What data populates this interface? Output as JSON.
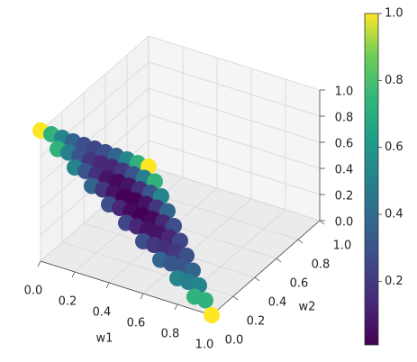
{
  "chart_data": {
    "type": "scatter3d",
    "colormap": "viridis",
    "xlabel": "w1",
    "ylabel": "w2",
    "x": [
      0,
      0,
      0,
      0,
      0,
      0,
      0,
      0,
      0,
      0,
      0,
      0.1,
      0.1,
      0.1,
      0.1,
      0.1,
      0.1,
      0.1,
      0.1,
      0.1,
      0.1,
      0.2,
      0.2,
      0.2,
      0.2,
      0.2,
      0.2,
      0.2,
      0.2,
      0.2,
      0.3,
      0.3,
      0.3,
      0.3,
      0.3,
      0.3,
      0.3,
      0.3,
      0.4,
      0.4,
      0.4,
      0.4,
      0.4,
      0.4,
      0.4,
      0.5,
      0.5,
      0.5,
      0.5,
      0.5,
      0.5,
      0.6,
      0.6,
      0.6,
      0.6,
      0.6,
      0.7,
      0.7,
      0.7,
      0.7,
      0.8,
      0.8,
      0.8,
      0.9,
      0.9,
      1
    ],
    "y": [
      0,
      0.1,
      0.2,
      0.3,
      0.4,
      0.5,
      0.6,
      0.7,
      0.8,
      0.9,
      1,
      0,
      0.1,
      0.2,
      0.3,
      0.4,
      0.5,
      0.6,
      0.7,
      0.8,
      0.9,
      0,
      0.1,
      0.2,
      0.3,
      0.4,
      0.5,
      0.6,
      0.7,
      0.8,
      0,
      0.1,
      0.2,
      0.3,
      0.4,
      0.5,
      0.6,
      0.7,
      0,
      0.1,
      0.2,
      0.3,
      0.4,
      0.5,
      0.6,
      0,
      0.1,
      0.2,
      0.3,
      0.4,
      0.5,
      0,
      0.1,
      0.2,
      0.3,
      0.4,
      0,
      0.1,
      0.2,
      0.3,
      0,
      0.1,
      0.2,
      0,
      0.1,
      0
    ],
    "z": [
      1,
      0.9,
      0.8,
      0.7,
      0.6,
      0.5,
      0.4,
      0.3,
      0.2,
      0.1,
      0,
      0.9,
      0.8,
      0.7,
      0.6,
      0.5,
      0.4,
      0.3,
      0.2,
      0.1,
      0,
      0.8,
      0.7,
      0.6,
      0.5,
      0.4,
      0.3,
      0.2,
      0.1,
      0,
      0.7,
      0.6,
      0.5,
      0.4,
      0.3,
      0.2,
      0.1,
      0,
      0.6,
      0.5,
      0.4,
      0.3,
      0.2,
      0.1,
      0,
      0.5,
      0.4,
      0.3,
      0.2,
      0.1,
      0,
      0.4,
      0.3,
      0.2,
      0.1,
      0,
      0.3,
      0.2,
      0.1,
      0,
      0.2,
      0.1,
      0,
      0.1,
      0,
      0
    ],
    "c": [
      1,
      0.73,
      0.52,
      0.37,
      0.28,
      0.25,
      0.28,
      0.37,
      0.52,
      0.73,
      1,
      0.73,
      0.49,
      0.31,
      0.19,
      0.13,
      0.13,
      0.19,
      0.31,
      0.49,
      0.73,
      0.52,
      0.31,
      0.16,
      0.07,
      0.04,
      0.07,
      0.16,
      0.31,
      0.52,
      0.37,
      0.19,
      0.07,
      0.01,
      0.01,
      0.07,
      0.19,
      0.37,
      0.28,
      0.13,
      0.04,
      0.01,
      0.04,
      0.13,
      0.28,
      0.25,
      0.13,
      0.07,
      0.07,
      0.13,
      0.25,
      0.28,
      0.19,
      0.16,
      0.19,
      0.28,
      0.37,
      0.31,
      0.31,
      0.37,
      0.52,
      0.49,
      0.52,
      0.73,
      0.73,
      1
    ],
    "xlim": [
      0,
      1
    ],
    "ylim": [
      0,
      1
    ],
    "zlim": [
      0,
      1
    ],
    "xticks": [
      {
        "value": 0,
        "label": "0.0"
      },
      {
        "value": 0.2,
        "label": "0.2"
      },
      {
        "value": 0.4,
        "label": "0.4"
      },
      {
        "value": 0.6,
        "label": "0.6"
      },
      {
        "value": 0.8,
        "label": "0.8"
      },
      {
        "value": 1,
        "label": "1.0"
      }
    ],
    "yticks": [
      {
        "value": 0,
        "label": "0.0"
      },
      {
        "value": 0.2,
        "label": "0.2"
      },
      {
        "value": 0.4,
        "label": "0.4"
      },
      {
        "value": 0.6,
        "label": "0.6"
      },
      {
        "value": 0.8,
        "label": "0.8"
      },
      {
        "value": 1,
        "label": "1.0"
      }
    ],
    "zticks": [
      {
        "value": 0,
        "label": "0.0"
      },
      {
        "value": 0.2,
        "label": "0.2"
      },
      {
        "value": 0.4,
        "label": "0.4"
      },
      {
        "value": 0.6,
        "label": "0.6"
      },
      {
        "value": 0.8,
        "label": "0.8"
      },
      {
        "value": 1,
        "label": "1.0"
      }
    ],
    "clim": [
      0.01,
      1
    ],
    "cticks": [
      0.2,
      0.4,
      0.6,
      0.8,
      {
        "value": 1,
        "label": "1.0"
      }
    ],
    "grid": true
  }
}
